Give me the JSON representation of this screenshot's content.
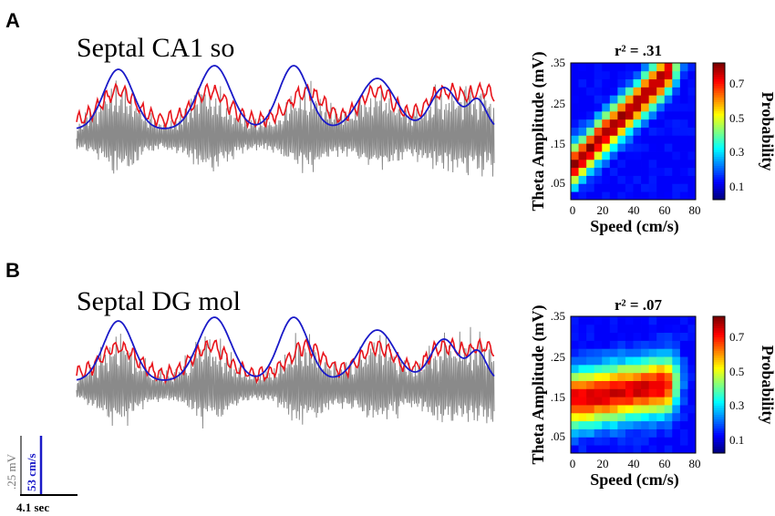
{
  "panel_a": {
    "letter": "A",
    "title": "Septal CA1 so"
  },
  "panel_b": {
    "letter": "B",
    "title": "Septal DG mol"
  },
  "colors": {
    "raw_trace": "#8a8a8a",
    "theta_envelope": "#e8141b",
    "speed": "#1a1ac8"
  },
  "scale_bar": {
    "voltage_label": ".25 mV",
    "speed_label": "53 cm/s",
    "time_label": "4.1 sec"
  },
  "chart_data": [
    {
      "type": "heatmap",
      "title": "r² = .31",
      "xlabel": "Speed (cm/s)",
      "ylabel": "Theta Amplitude (mV)",
      "xlim": [
        0,
        80
      ],
      "ylim": [
        0.02,
        0.35
      ],
      "xticks": [
        "0",
        "20",
        "40",
        "60",
        "80"
      ],
      "yticks": [
        ".05",
        ".15",
        ".25",
        ".35"
      ],
      "colorbar": {
        "label": "Probability",
        "ticks": [
          "0.1",
          "0.3",
          "0.5",
          "0.7"
        ],
        "range": [
          0,
          0.8
        ]
      },
      "ridge": {
        "slope": 1.6,
        "intercept": 3.9,
        "width": 1.7,
        "peak": 0.78
      }
    },
    {
      "type": "heatmap",
      "title": "r² = .07",
      "xlabel": "Speed (cm/s)",
      "ylabel": "Theta Amplitude (mV)",
      "xlim": [
        0,
        80
      ],
      "ylim": [
        0.02,
        0.35
      ],
      "xticks": [
        "0",
        "20",
        "40",
        "60",
        "80"
      ],
      "yticks": [
        ".05",
        ".15",
        ".25",
        ".35"
      ],
      "colorbar": {
        "label": "Probability",
        "ticks": [
          "0.1",
          "0.3",
          "0.5",
          "0.7"
        ],
        "range": [
          0,
          0.8
        ]
      },
      "ridge": {
        "slope": 0.25,
        "intercept": 6.2,
        "width": 2.4,
        "peak": 0.72
      }
    }
  ]
}
